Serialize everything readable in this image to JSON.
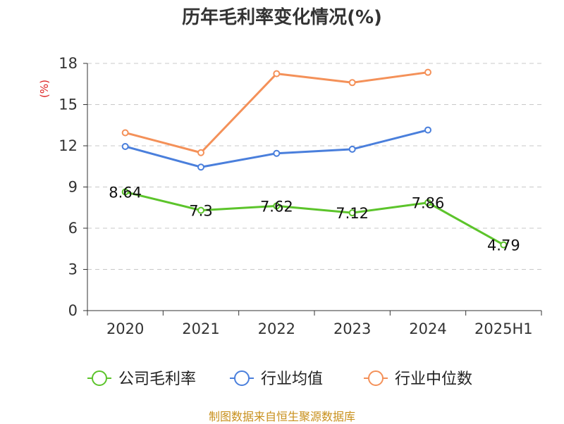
{
  "chart_data": {
    "type": "line",
    "title": "历年毛利率变化情况(%)",
    "ylabel": "(%)",
    "xlabel": "",
    "categories": [
      "2020",
      "2021",
      "2022",
      "2023",
      "2024",
      "2025H1"
    ],
    "ylim": [
      0,
      18
    ],
    "yticks": [
      0,
      3,
      6,
      9,
      12,
      15,
      18
    ],
    "yticks_text": [
      "0",
      "3",
      "6",
      "9",
      "12",
      "15",
      "18"
    ],
    "grid": "horizontal dashed",
    "legend_position": "bottom",
    "series": [
      {
        "name": "公司毛利率",
        "color": "#5cc42b",
        "values": [
          8.64,
          7.3,
          7.62,
          7.12,
          7.86,
          4.79
        ],
        "labels": [
          "8.64",
          "7.3",
          "7.62",
          "7.12",
          "7.86",
          "4.79"
        ]
      },
      {
        "name": "行业均值",
        "color": "#4a7fdc",
        "values": [
          11.95,
          10.45,
          11.45,
          11.75,
          13.15,
          null
        ]
      },
      {
        "name": "行业中位数",
        "color": "#f49159",
        "values": [
          12.95,
          11.5,
          17.25,
          16.6,
          17.35,
          null
        ]
      }
    ]
  },
  "source": "制图数据来自恒生聚源数据库",
  "colors": {
    "ylabel": "#dd2222",
    "source": "#c8901c"
  }
}
